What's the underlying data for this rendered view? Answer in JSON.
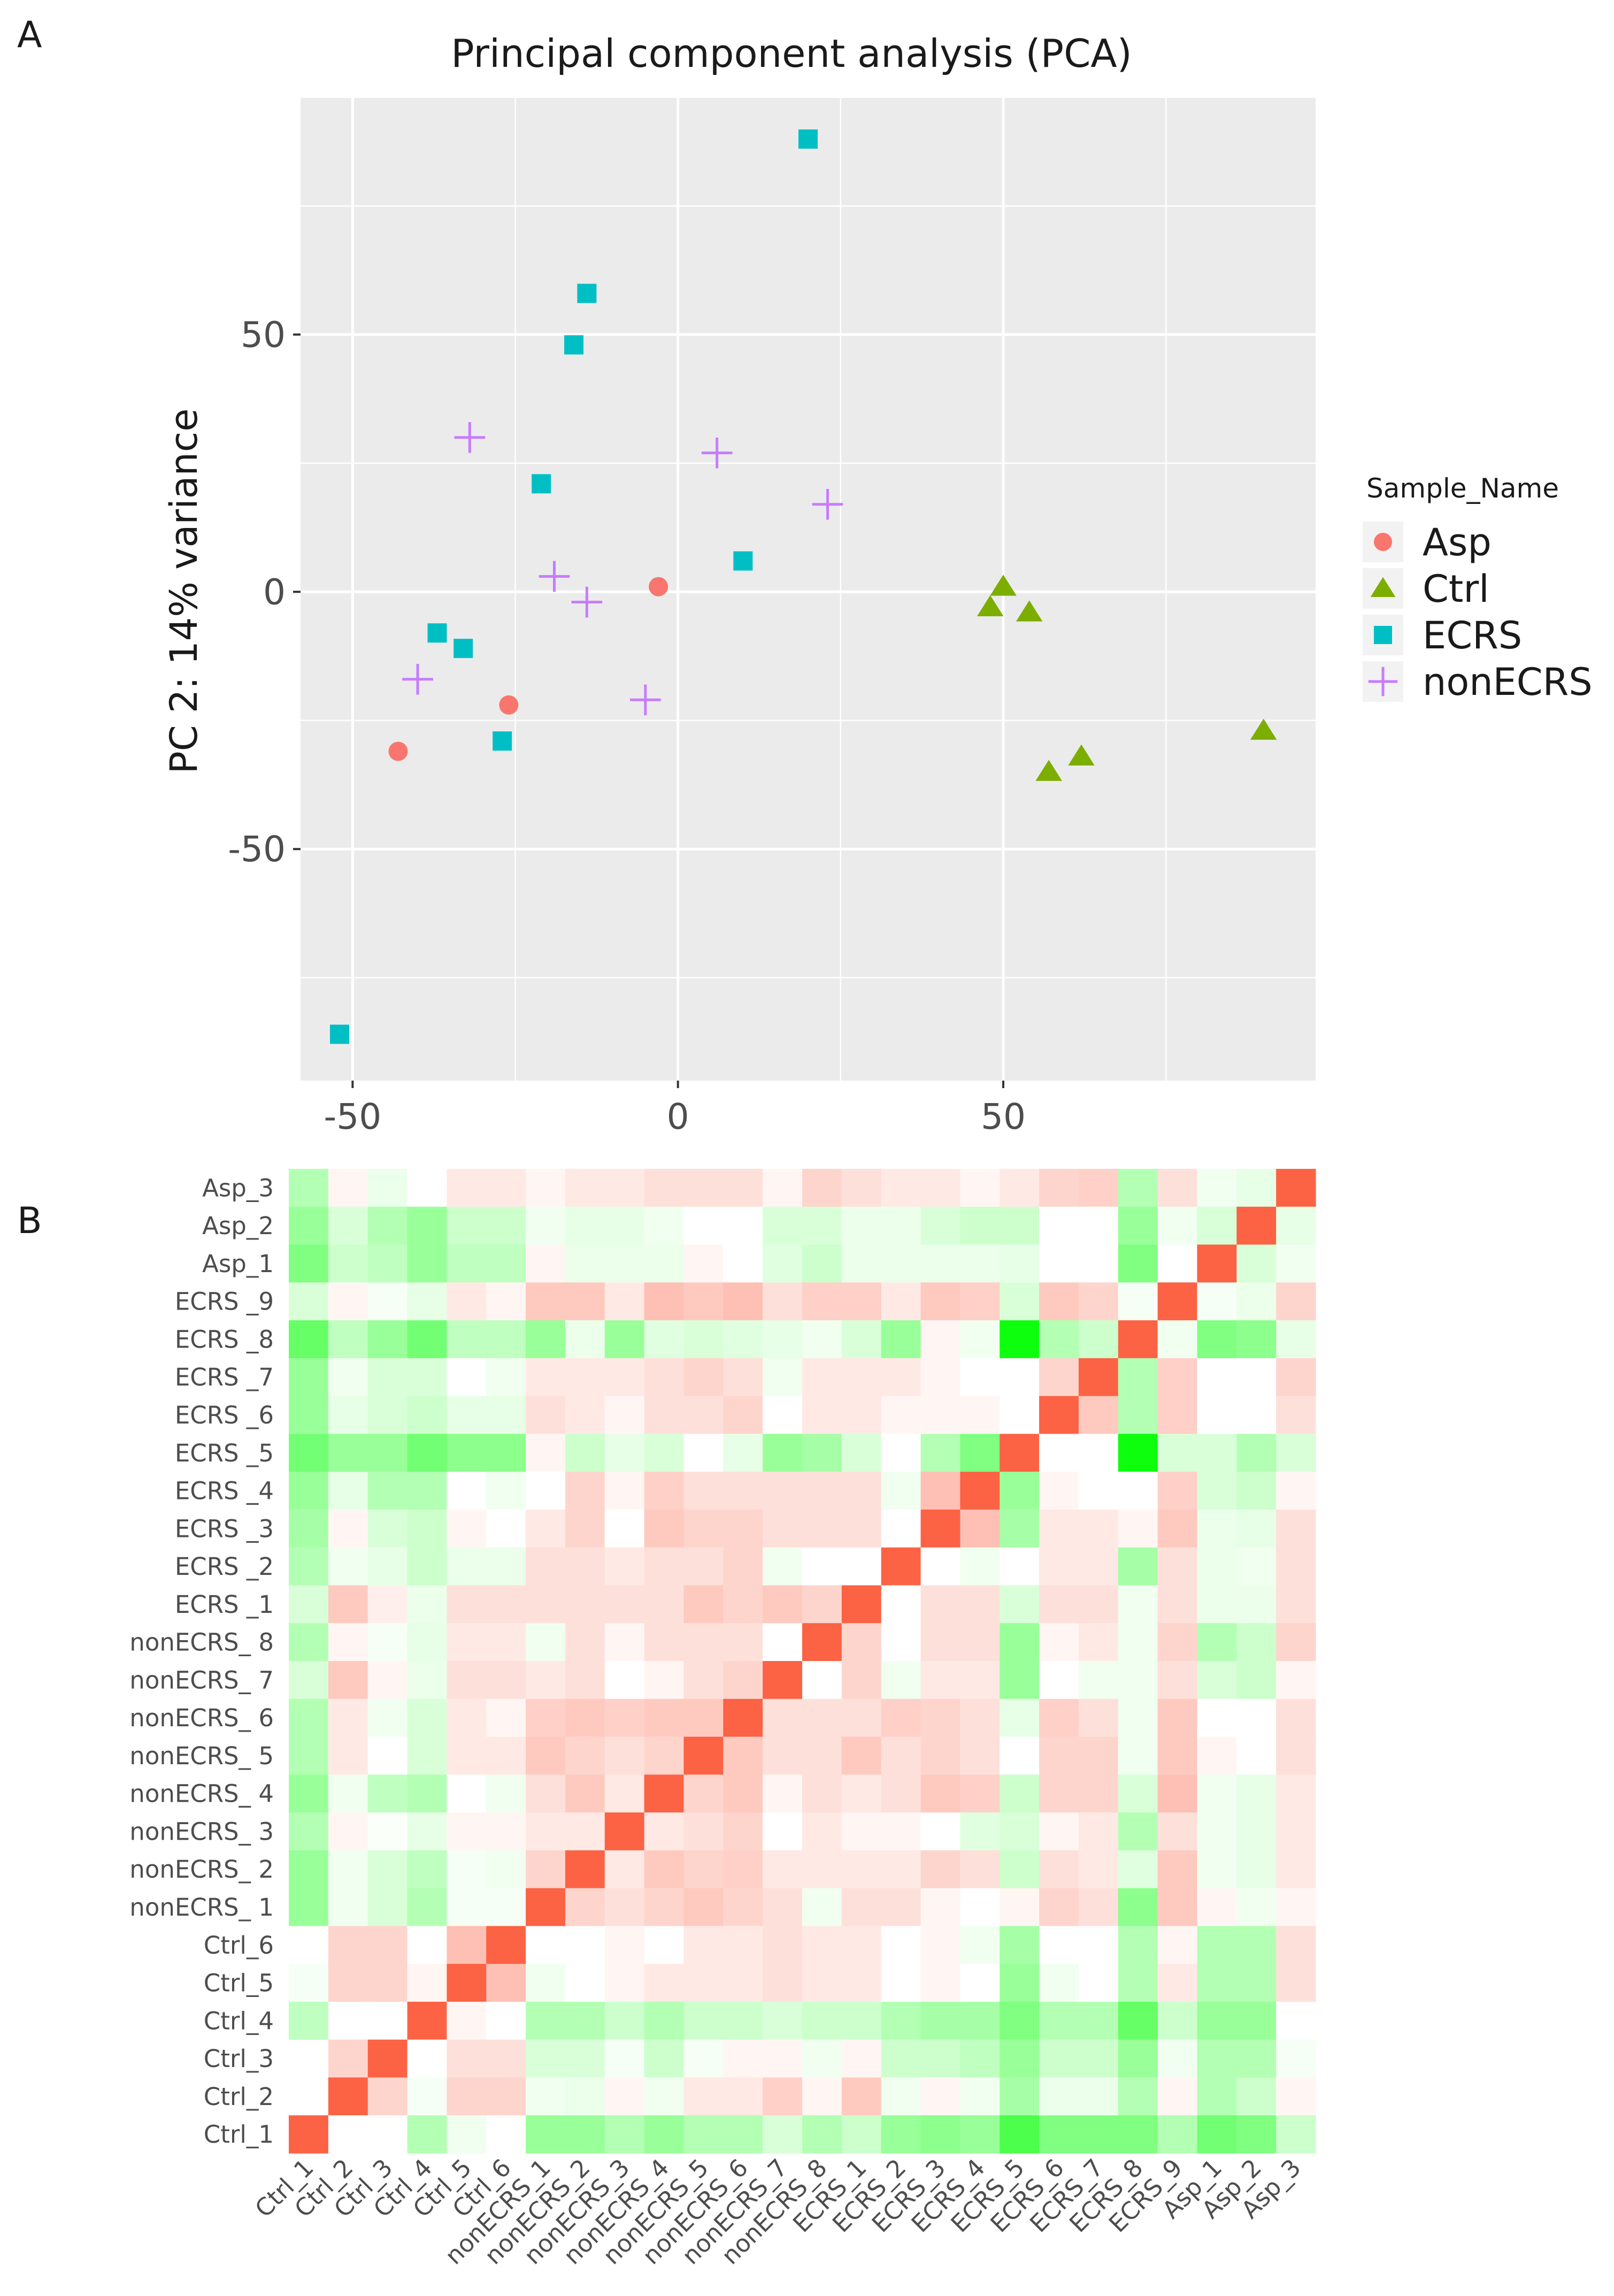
{
  "panel_labels": {
    "a": "A",
    "b": "B"
  },
  "chart_data": [
    {
      "type": "scatter",
      "title": "Principal component analysis   (PCA)",
      "xlabel": "",
      "ylabel": "PC 2: 14% variance",
      "xlim": [
        -58,
        98
      ],
      "ylim": [
        -95,
        96
      ],
      "xticks": [
        -50,
        0,
        50
      ],
      "xtick_labels": [
        "-50",
        "0",
        "50"
      ],
      "yticks": [
        -50,
        0,
        50
      ],
      "ytick_labels": [
        "-50",
        "0",
        "50"
      ],
      "grid": true,
      "legend": {
        "title": "Sample_Name",
        "position": "right"
      },
      "series": [
        {
          "name": "Asp",
          "marker": "circle",
          "color": "#F8766D",
          "points": [
            [
              -43,
              -31
            ],
            [
              -26,
              -22
            ],
            [
              -3,
              1
            ]
          ]
        },
        {
          "name": "Ctrl",
          "marker": "triangle",
          "color": "#7CAE00",
          "points": [
            [
              48,
              -3
            ],
            [
              50,
              1
            ],
            [
              54,
              -4
            ],
            [
              57,
              -35
            ],
            [
              62,
              -32
            ],
            [
              90,
              -27
            ]
          ]
        },
        {
          "name": "ECRS",
          "marker": "square",
          "color": "#00BFC4",
          "points": [
            [
              20,
              88
            ],
            [
              -14,
              58
            ],
            [
              -16,
              48
            ],
            [
              -21,
              21
            ],
            [
              10,
              6
            ],
            [
              -37,
              -8
            ],
            [
              -33,
              -11
            ],
            [
              -27,
              -29
            ],
            [
              -52,
              -86
            ]
          ]
        },
        {
          "name": "nonECRS",
          "marker": "plus",
          "color": "#C77CFF",
          "points": [
            [
              -32,
              30
            ],
            [
              6,
              27
            ],
            [
              23,
              17
            ],
            [
              -19,
              3
            ],
            [
              -14,
              -2
            ],
            [
              -40,
              -17
            ],
            [
              -5,
              -21
            ]
          ]
        }
      ]
    },
    {
      "type": "heatmap",
      "row_labels_top_to_bottom": [
        "Asp_3",
        "Asp_2",
        "Asp_1",
        "ECRS _9",
        "ECRS _8",
        "ECRS _7",
        "ECRS _6",
        "ECRS _5",
        "ECRS _4",
        "ECRS _3",
        "ECRS _2",
        "ECRS _1",
        "nonECRS_ 8",
        "nonECRS_ 7",
        "nonECRS_ 6",
        "nonECRS_ 5",
        "nonECRS_ 4",
        "nonECRS_ 3",
        "nonECRS_ 2",
        "nonECRS_ 1",
        "Ctrl_6",
        "Ctrl_5",
        "Ctrl_4",
        "Ctrl_3",
        "Ctrl_2",
        "Ctrl_1"
      ],
      "col_labels": [
        "Ctrl_1",
        "Ctrl_2",
        "Ctrl_3",
        "Ctrl_4",
        "Ctrl_5",
        "Ctrl_6",
        "nonECRS_1",
        "nonECRS_2",
        "nonECRS_3",
        "nonECRS_4",
        "nonECRS_5",
        "nonECRS_6",
        "nonECRS_7",
        "nonECRS_8",
        "ECRS_1",
        "ECRS_2",
        "ECRS_3",
        "ECRS_4",
        "ECRS_5",
        "ECRS_6",
        "ECRS_7",
        "ECRS_8",
        "ECRS_9",
        "Asp_1",
        "Asp_2",
        "Asp_3"
      ],
      "scale": {
        "low_color": "#00FF00",
        "mid_color": "#FFFFFF",
        "high_color": "#FC6244",
        "range": [
          -1,
          1
        ]
      },
      "values_top_to_bottom": [
        [
          -0.3,
          0.06,
          -0.08,
          0,
          0.14,
          0.14,
          0.06,
          0.14,
          0.14,
          0.2,
          0.2,
          0.2,
          0.06,
          0.27,
          0.2,
          0.14,
          0.14,
          0.06,
          0.14,
          0.27,
          0.3,
          -0.3,
          0.2,
          -0.06,
          -0.1,
          1
        ],
        [
          -0.4,
          -0.15,
          -0.3,
          -0.4,
          -0.2,
          -0.2,
          -0.06,
          -0.1,
          -0.1,
          -0.06,
          0,
          0,
          -0.15,
          -0.15,
          -0.08,
          -0.08,
          -0.15,
          -0.2,
          -0.2,
          0,
          0,
          -0.4,
          -0.06,
          -0.15,
          1,
          -0.1
        ],
        [
          -0.5,
          -0.2,
          -0.25,
          -0.4,
          -0.25,
          -0.25,
          0.06,
          -0.08,
          -0.08,
          -0.08,
          0.06,
          0,
          -0.12,
          -0.2,
          -0.08,
          -0.08,
          -0.08,
          -0.08,
          -0.1,
          0,
          0,
          -0.5,
          0,
          1,
          -0.15,
          -0.06
        ],
        [
          -0.15,
          0.06,
          -0.04,
          -0.1,
          0.14,
          0.06,
          0.34,
          0.34,
          0.14,
          0.4,
          0.34,
          0.4,
          0.2,
          0.3,
          0.3,
          0.14,
          0.34,
          0.3,
          -0.15,
          0.34,
          0.27,
          -0.04,
          1,
          -0.04,
          -0.08,
          0.27
        ],
        [
          -0.6,
          -0.25,
          -0.4,
          -0.55,
          -0.25,
          -0.25,
          -0.4,
          -0.08,
          -0.4,
          -0.12,
          -0.15,
          -0.12,
          -0.1,
          -0.06,
          -0.15,
          -0.4,
          0.06,
          -0.06,
          -0.95,
          -0.3,
          -0.2,
          1,
          -0.06,
          -0.5,
          -0.45,
          -0.1
        ],
        [
          -0.4,
          -0.06,
          -0.15,
          -0.15,
          0,
          -0.06,
          0.14,
          0.14,
          0.14,
          0.2,
          0.27,
          0.2,
          -0.06,
          0.14,
          0.14,
          0.14,
          0.06,
          0,
          0,
          0.27,
          1,
          -0.3,
          0.3,
          0,
          0,
          0.27
        ],
        [
          -0.4,
          -0.1,
          -0.15,
          -0.2,
          -0.1,
          -0.1,
          0.2,
          0.14,
          0.06,
          0.2,
          0.2,
          0.27,
          0,
          0.14,
          0.14,
          0.06,
          0.06,
          0.06,
          0,
          1,
          0.34,
          -0.3,
          0.3,
          0,
          0,
          0.2
        ],
        [
          -0.55,
          -0.4,
          -0.4,
          -0.55,
          -0.45,
          -0.45,
          0.06,
          -0.2,
          -0.1,
          -0.15,
          0,
          -0.1,
          -0.4,
          -0.35,
          -0.15,
          0,
          -0.3,
          -0.5,
          1,
          0,
          0,
          -0.95,
          -0.15,
          -0.15,
          -0.3,
          -0.15
        ],
        [
          -0.4,
          -0.1,
          -0.3,
          -0.3,
          0,
          -0.06,
          0,
          0.27,
          0.06,
          0.3,
          0.2,
          0.2,
          0.2,
          0.2,
          0.2,
          -0.06,
          0.4,
          1,
          -0.4,
          0.06,
          0,
          0,
          0.3,
          -0.15,
          -0.2,
          0.06
        ],
        [
          -0.35,
          0.06,
          -0.15,
          -0.2,
          0.06,
          0,
          0.14,
          0.27,
          0,
          0.34,
          0.27,
          0.27,
          0.2,
          0.2,
          0.2,
          0,
          1,
          0.4,
          -0.35,
          0.14,
          0.14,
          0.06,
          0.34,
          -0.08,
          -0.1,
          0.2
        ],
        [
          -0.3,
          -0.06,
          -0.1,
          -0.2,
          -0.08,
          -0.08,
          0.2,
          0.2,
          0.14,
          0.2,
          0.2,
          0.27,
          -0.06,
          0,
          0,
          1,
          0,
          -0.06,
          0,
          0.14,
          0.14,
          -0.35,
          0.2,
          -0.08,
          -0.06,
          0.2
        ],
        [
          -0.15,
          0.34,
          0.1,
          -0.08,
          0.2,
          0.2,
          0.2,
          0.2,
          0.2,
          0.2,
          0.34,
          0.27,
          0.34,
          0.27,
          1,
          0,
          0.2,
          0.2,
          -0.15,
          0.2,
          0.2,
          -0.06,
          0.2,
          -0.08,
          -0.08,
          0.2
        ],
        [
          -0.3,
          0.06,
          -0.04,
          -0.1,
          0.14,
          0.14,
          -0.06,
          0.2,
          0.06,
          0.2,
          0.2,
          0.2,
          0,
          1,
          0.27,
          0,
          0.2,
          0.2,
          -0.4,
          0.06,
          0.14,
          -0.06,
          0.27,
          -0.3,
          -0.2,
          0.27
        ],
        [
          -0.15,
          0.34,
          0.06,
          -0.08,
          0.2,
          0.2,
          0.14,
          0.2,
          0,
          0.06,
          0.2,
          0.27,
          1,
          0,
          0.27,
          -0.06,
          0.14,
          0.14,
          -0.4,
          0,
          -0.06,
          -0.06,
          0.2,
          -0.15,
          -0.2,
          0.06
        ],
        [
          -0.3,
          0.14,
          -0.06,
          -0.15,
          0.14,
          0.06,
          0.3,
          0.34,
          0.3,
          0.34,
          0.34,
          1,
          0.2,
          0.2,
          0.2,
          0.3,
          0.27,
          0.2,
          -0.1,
          0.3,
          0.2,
          -0.06,
          0.34,
          0,
          0,
          0.2
        ],
        [
          -0.3,
          0.14,
          0,
          -0.15,
          0.14,
          0.14,
          0.34,
          0.27,
          0.2,
          0.27,
          1,
          0.34,
          0.2,
          0.2,
          0.34,
          0.2,
          0.27,
          0.2,
          0,
          0.27,
          0.27,
          -0.06,
          0.34,
          0.06,
          0,
          0.2
        ],
        [
          -0.4,
          -0.06,
          -0.25,
          -0.3,
          0,
          -0.06,
          0.2,
          0.34,
          0.14,
          1,
          0.27,
          0.34,
          0.06,
          0.2,
          0.14,
          0.2,
          0.34,
          0.3,
          -0.2,
          0.27,
          0.27,
          -0.15,
          0.4,
          -0.06,
          -0.1,
          0.14
        ],
        [
          -0.3,
          0.06,
          -0.02,
          -0.1,
          0.06,
          0.06,
          0.14,
          0.14,
          1,
          0.14,
          0.2,
          0.27,
          0,
          0.14,
          0.06,
          0.06,
          0,
          -0.12,
          -0.15,
          0.06,
          0.14,
          -0.3,
          0.2,
          -0.06,
          -0.1,
          0.14
        ],
        [
          -0.4,
          -0.06,
          -0.15,
          -0.25,
          -0.04,
          -0.06,
          0.27,
          1,
          0.14,
          0.34,
          0.27,
          0.3,
          0.14,
          0.14,
          0.14,
          0.14,
          0.27,
          0.2,
          -0.2,
          0.2,
          0.14,
          -0.12,
          0.34,
          -0.06,
          -0.1,
          0.14
        ],
        [
          -0.4,
          -0.06,
          -0.15,
          -0.3,
          -0.04,
          -0.04,
          1,
          0.27,
          0.2,
          0.27,
          0.34,
          0.27,
          0.2,
          -0.06,
          0.2,
          0.2,
          0.06,
          0,
          0.06,
          0.27,
          0.2,
          -0.45,
          0.34,
          0.06,
          -0.06,
          0.06
        ],
        [
          0,
          0.27,
          0.27,
          0,
          0.4,
          1,
          0,
          0,
          0.06,
          0,
          0.14,
          0.14,
          0.2,
          0.14,
          0.14,
          0,
          0.06,
          -0.06,
          -0.35,
          0,
          0,
          -0.3,
          0.06,
          -0.3,
          -0.3,
          0.2
        ],
        [
          -0.04,
          0.27,
          0.27,
          0.06,
          1,
          0.4,
          -0.06,
          0,
          0.06,
          0.14,
          0.14,
          0.14,
          0.2,
          0.14,
          0.14,
          0,
          0.06,
          0,
          -0.4,
          -0.06,
          0,
          -0.3,
          0.14,
          -0.3,
          -0.3,
          0.2
        ],
        [
          -0.25,
          0,
          0,
          1,
          0.06,
          0,
          -0.3,
          -0.3,
          -0.2,
          -0.3,
          -0.2,
          -0.2,
          -0.15,
          -0.2,
          -0.2,
          -0.3,
          -0.35,
          -0.35,
          -0.5,
          -0.3,
          -0.3,
          -0.6,
          -0.2,
          -0.4,
          -0.4,
          0
        ],
        [
          0,
          0.27,
          1,
          0,
          0.2,
          0.2,
          -0.15,
          -0.15,
          -0.04,
          -0.2,
          -0.04,
          0.06,
          0.06,
          -0.06,
          0.06,
          -0.2,
          -0.2,
          -0.25,
          -0.4,
          -0.2,
          -0.2,
          -0.4,
          -0.06,
          -0.3,
          -0.3,
          -0.04
        ],
        [
          0,
          1,
          0.27,
          -0.04,
          0.27,
          0.27,
          -0.06,
          -0.08,
          0.06,
          -0.06,
          0.14,
          0.14,
          0.3,
          0.06,
          0.34,
          -0.06,
          0.06,
          -0.06,
          -0.35,
          -0.08,
          -0.08,
          -0.3,
          0.06,
          -0.3,
          -0.2,
          0.06
        ],
        [
          1,
          0,
          0,
          -0.3,
          -0.06,
          0,
          -0.4,
          -0.4,
          -0.3,
          -0.4,
          -0.3,
          -0.3,
          -0.15,
          -0.3,
          -0.2,
          -0.4,
          -0.45,
          -0.4,
          -0.7,
          -0.5,
          -0.5,
          -0.5,
          -0.3,
          -0.55,
          -0.5,
          -0.2
        ]
      ]
    }
  ]
}
